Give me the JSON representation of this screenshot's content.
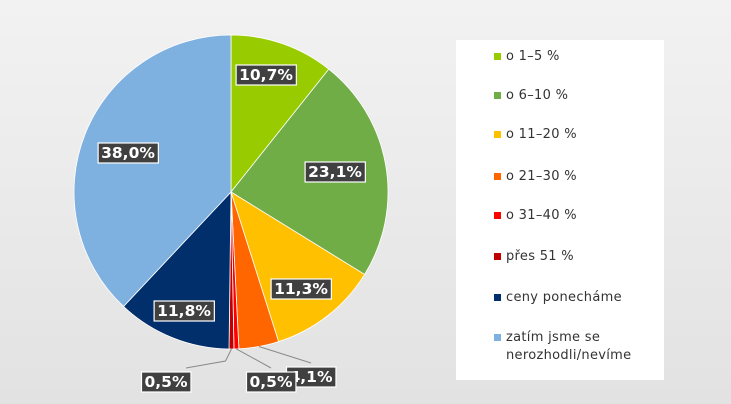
{
  "chart_data": {
    "type": "pie",
    "categories": [
      "o 1–5 %",
      "o 6–10 %",
      "o 11–20 %",
      "o 21–30 %",
      "o 31–40 %",
      "přes 51 %",
      "ceny ponecháme",
      "zatím jsme se nerozhodli/nevíme"
    ],
    "values": [
      10.7,
      23.1,
      11.3,
      4.1,
      0.5,
      0.5,
      11.8,
      38.0
    ],
    "data_labels": [
      "10,7%",
      "23,1%",
      "11,3%",
      "4,1%",
      "0,5%",
      "0,5%",
      "11,8%",
      "38,0%"
    ],
    "colors": [
      "#99cc00",
      "#70ad47",
      "#ffc000",
      "#ff6600",
      "#ff0000",
      "#c00000",
      "#002f6c",
      "#7eb0e0"
    ],
    "legend_position": "right"
  },
  "legend": {
    "items": [
      {
        "label": "o 1–5 %",
        "color": "#99cc00"
      },
      {
        "label": "o 6–10 %",
        "color": "#70ad47"
      },
      {
        "label": "o 11–20 %",
        "color": "#ffc000"
      },
      {
        "label": "o 21–30 %",
        "color": "#ff6600"
      },
      {
        "label": "o 31–40 %",
        "color": "#ff0000"
      },
      {
        "label": "přes 51 %",
        "color": "#c00000"
      },
      {
        "label": "ceny ponecháme",
        "color": "#002f6c"
      },
      {
        "label": "zatím jsme se\nnerozhodli/nevíme",
        "color": "#7eb0e0"
      }
    ]
  }
}
